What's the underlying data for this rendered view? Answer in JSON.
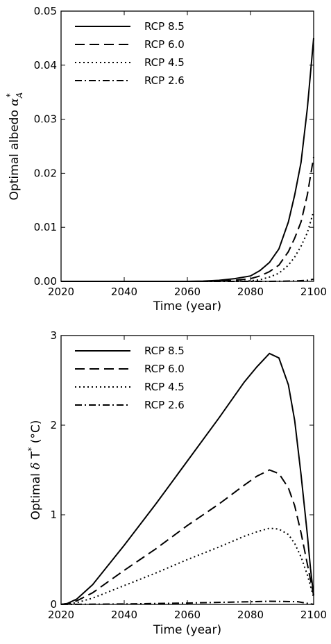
{
  "chart_data": [
    {
      "type": "line",
      "title": "",
      "xlabel": "Time (year)",
      "ylabel": {
        "prefix": "Optimal albedo ",
        "symbol": "α",
        "sub": "A",
        "sup": "*"
      },
      "xlim": [
        2020,
        2100
      ],
      "ylim": [
        0,
        0.05
      ],
      "xticks": [
        2020,
        2040,
        2060,
        2080,
        2100
      ],
      "yticks": [
        0.0,
        0.01,
        0.02,
        0.03,
        0.04,
        0.05
      ],
      "ytick_labels": [
        "0.00",
        "0.01",
        "0.02",
        "0.03",
        "0.04",
        "0.05"
      ],
      "xtick_labels": [
        "2020",
        "2040",
        "2060",
        "2080",
        "2100"
      ],
      "legend": "top-left",
      "grid": false,
      "series": [
        {
          "name": "RCP 8.5",
          "style": "solid",
          "x": [
            2020,
            2060,
            2065,
            2070,
            2075,
            2080,
            2083,
            2086,
            2089,
            2092,
            2094,
            2096,
            2098,
            2100
          ],
          "y": [
            0,
            0,
            5e-05,
            0.0002,
            0.0005,
            0.001,
            0.002,
            0.0035,
            0.006,
            0.011,
            0.016,
            0.022,
            0.032,
            0.045
          ]
        },
        {
          "name": "RCP 6.0",
          "style": "dashed",
          "x": [
            2020,
            2065,
            2070,
            2075,
            2080,
            2083,
            2086,
            2089,
            2092,
            2094,
            2096,
            2098,
            2100
          ],
          "y": [
            0,
            0,
            5e-05,
            0.0002,
            0.0005,
            0.001,
            0.0018,
            0.003,
            0.0055,
            0.008,
            0.011,
            0.016,
            0.023
          ]
        },
        {
          "name": "RCP 4.5",
          "style": "dotted",
          "x": [
            2020,
            2075,
            2080,
            2083,
            2086,
            2089,
            2092,
            2094,
            2096,
            2098,
            2100
          ],
          "y": [
            0,
            0,
            0.0001,
            0.0003,
            0.0008,
            0.0015,
            0.003,
            0.0045,
            0.0065,
            0.009,
            0.013
          ]
        },
        {
          "name": "RCP 2.6",
          "style": "dashdot",
          "x": [
            2020,
            2085,
            2090,
            2095,
            2098,
            2100
          ],
          "y": [
            0,
            0,
            3e-05,
            0.0001,
            0.0002,
            0.0004
          ]
        }
      ]
    },
    {
      "type": "line",
      "title": "",
      "xlabel": "Time (year)",
      "ylabel": {
        "prefix": "Optimal ",
        "symbol": "δ",
        "mid": " T",
        "sup": "*",
        "suffix": " (°C)"
      },
      "xlim": [
        2020,
        2100
      ],
      "ylim": [
        0,
        3
      ],
      "xticks": [
        2020,
        2040,
        2060,
        2080,
        2100
      ],
      "yticks": [
        0,
        1,
        2,
        3
      ],
      "ytick_labels": [
        "0",
        "1",
        "2",
        "3"
      ],
      "xtick_labels": [
        "2020",
        "2040",
        "2060",
        "2080",
        "2100"
      ],
      "legend": "top-left",
      "grid": false,
      "series": [
        {
          "name": "RCP 8.5",
          "style": "solid",
          "x": [
            2020,
            2022,
            2025,
            2030,
            2040,
            2050,
            2060,
            2070,
            2078,
            2082,
            2086,
            2089,
            2092,
            2094,
            2096,
            2098,
            2099,
            2100
          ],
          "y": [
            0,
            0.01,
            0.06,
            0.22,
            0.66,
            1.12,
            1.6,
            2.08,
            2.48,
            2.65,
            2.8,
            2.75,
            2.45,
            2.05,
            1.45,
            0.78,
            0.4,
            0.1
          ]
        },
        {
          "name": "RCP 6.0",
          "style": "dashed",
          "x": [
            2020,
            2022,
            2025,
            2030,
            2040,
            2050,
            2060,
            2070,
            2078,
            2082,
            2086,
            2089,
            2092,
            2094,
            2096,
            2098,
            2100
          ],
          "y": [
            0,
            0.01,
            0.04,
            0.13,
            0.38,
            0.62,
            0.88,
            1.12,
            1.33,
            1.43,
            1.5,
            1.46,
            1.3,
            1.1,
            0.8,
            0.45,
            0.1
          ]
        },
        {
          "name": "RCP 4.5",
          "style": "dotted",
          "x": [
            2020,
            2022,
            2025,
            2030,
            2040,
            2050,
            2060,
            2070,
            2078,
            2082,
            2086,
            2089,
            2092,
            2094,
            2096,
            2098,
            2100
          ],
          "y": [
            0,
            0.005,
            0.02,
            0.07,
            0.21,
            0.35,
            0.5,
            0.64,
            0.76,
            0.81,
            0.85,
            0.84,
            0.78,
            0.68,
            0.53,
            0.33,
            0.08
          ]
        },
        {
          "name": "RCP 2.6",
          "style": "dashdot",
          "x": [
            2020,
            2040,
            2060,
            2080,
            2086,
            2095,
            2100
          ],
          "y": [
            0,
            0.005,
            0.015,
            0.03,
            0.035,
            0.03,
            0.0
          ]
        }
      ]
    }
  ]
}
